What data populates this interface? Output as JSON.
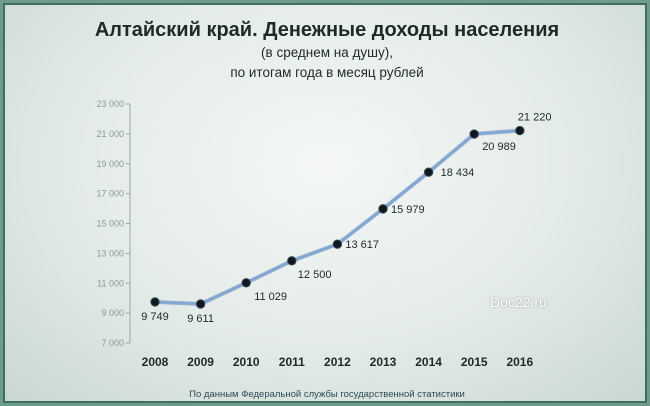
{
  "chart_data": {
    "type": "line",
    "title": "Алтайский край. Денежные доходы населения",
    "subtitle_line1": "(в среднем на душу),",
    "subtitle_line2": "по итогам года в месяц рублей",
    "footer": "По данным Федеральной службы государственной статистики",
    "watermark": "Doc22.ru",
    "x": [
      "2008",
      "2009",
      "2010",
      "2011",
      "2012",
      "2013",
      "2014",
      "2015",
      "2016"
    ],
    "series": [
      {
        "values": [
          9749,
          9611,
          11029,
          12500,
          13617,
          15979,
          18434,
          20989,
          21220
        ],
        "labels": [
          "9 749",
          "9 611",
          "11 029",
          "12 500",
          "13 617",
          "15 979",
          "18 434",
          "20 989",
          "21 220"
        ]
      }
    ],
    "yticks": [
      "7 000",
      "9 000",
      "11 000",
      "13 000",
      "15 000",
      "17 000",
      "19 000",
      "21 000",
      "23 000"
    ],
    "ylim": [
      7000,
      23000
    ],
    "line_color": "#7fa6d6",
    "marker_color": "#101820",
    "grid": false
  }
}
